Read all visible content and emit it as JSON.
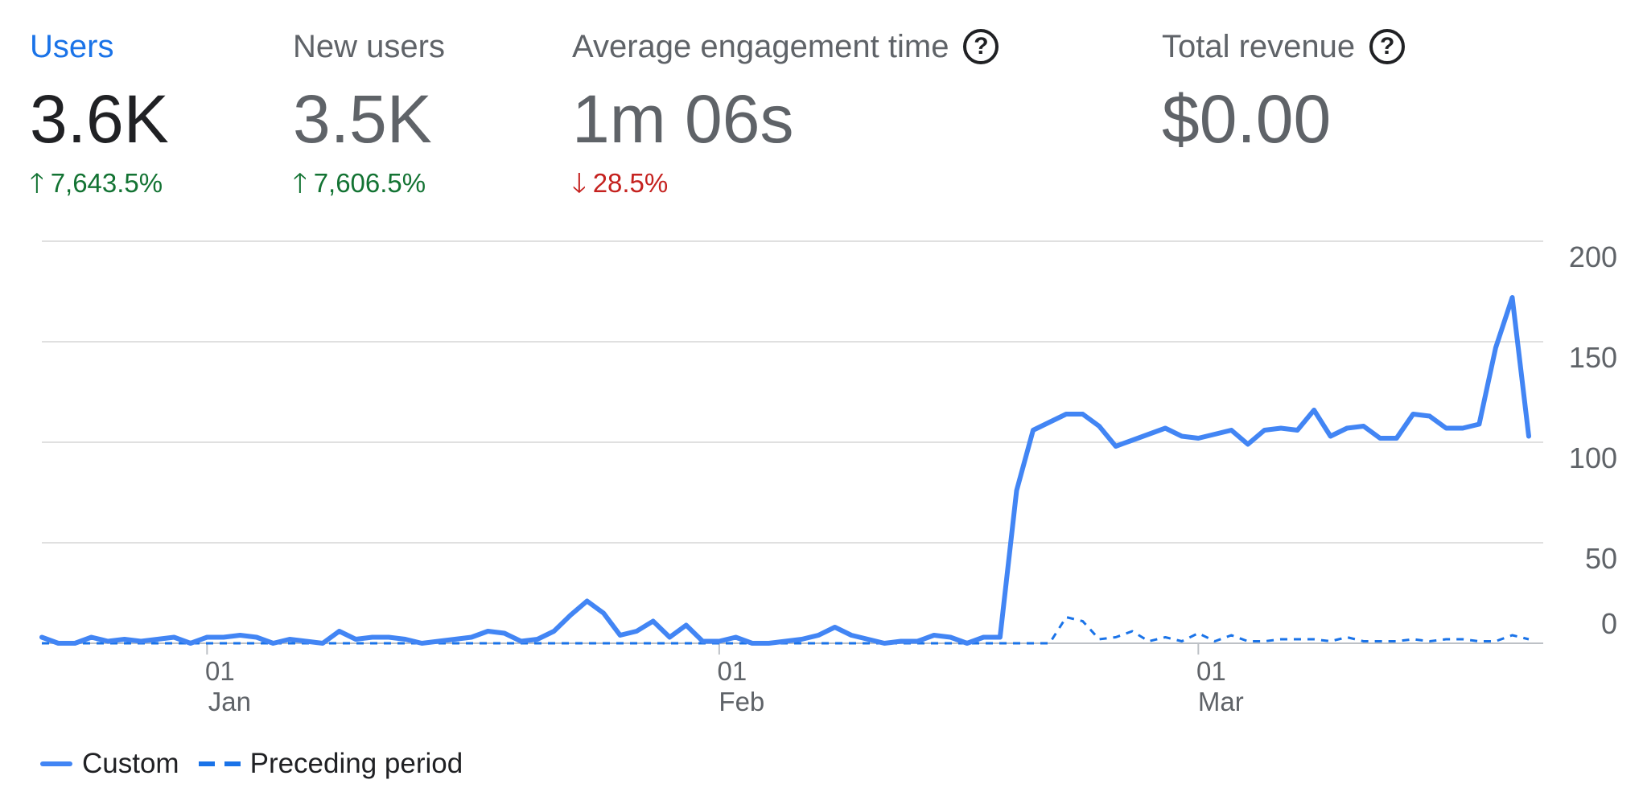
{
  "metrics": [
    {
      "label": "Users",
      "value": "3.6K",
      "delta": "7,643.5%",
      "direction": "up",
      "active": true,
      "help": false
    },
    {
      "label": "New users",
      "value": "3.5K",
      "delta": "7,606.5%",
      "direction": "up",
      "active": false,
      "help": false
    },
    {
      "label": "Average engagement time",
      "value": "1m 06s",
      "delta": "28.5%",
      "direction": "down",
      "active": false,
      "help": true
    },
    {
      "label": "Total revenue",
      "value": "$0.00",
      "delta": "",
      "direction": "",
      "active": false,
      "help": true
    }
  ],
  "icons": {
    "up": "arrow-up-icon",
    "down": "arrow-down-icon",
    "help": "help-circle-icon"
  },
  "colors": {
    "custom": "#4285f4",
    "preceding": "#1a73e8",
    "up": "#137333",
    "down": "#c5221f",
    "accent": "#1a73e8"
  },
  "legend": {
    "custom": "Custom",
    "preceding": "Preceding period"
  },
  "chart_data": {
    "type": "line",
    "xlabel": "",
    "ylabel": "",
    "ylim": [
      0,
      200
    ],
    "yticks": [
      0,
      50,
      100,
      150,
      200
    ],
    "xticks": [
      {
        "day": "01",
        "month": "Jan"
      },
      {
        "day": "01",
        "month": "Feb"
      },
      {
        "day": "01",
        "month": "Mar"
      }
    ],
    "x_start": "2023-12-22",
    "grid": true,
    "legend_position": "bottom-left",
    "series": [
      {
        "name": "Custom",
        "style": "solid",
        "values": [
          3,
          0,
          0,
          3,
          1,
          2,
          1,
          2,
          3,
          0,
          3,
          3,
          4,
          3,
          0,
          2,
          1,
          0,
          6,
          2,
          3,
          3,
          2,
          0,
          1,
          2,
          3,
          6,
          5,
          1,
          2,
          6,
          14,
          21,
          15,
          4,
          6,
          11,
          3,
          9,
          1,
          1,
          3,
          0,
          0,
          1,
          2,
          4,
          8,
          4,
          2,
          0,
          1,
          1,
          4,
          3,
          0,
          3,
          3,
          76,
          106,
          110,
          114,
          114,
          108,
          98,
          101,
          104,
          107,
          103,
          102,
          104,
          106,
          99,
          106,
          107,
          106,
          116,
          103,
          107,
          108,
          102,
          102,
          114,
          113,
          107,
          107,
          109,
          147,
          172,
          103
        ]
      },
      {
        "name": "Preceding period",
        "style": "dashed",
        "values": [
          0,
          0,
          0,
          0,
          0,
          0,
          0,
          0,
          0,
          0,
          0,
          0,
          0,
          0,
          0,
          0,
          0,
          0,
          0,
          0,
          0,
          0,
          0,
          0,
          0,
          0,
          0,
          0,
          0,
          0,
          0,
          0,
          0,
          0,
          0,
          0,
          0,
          0,
          0,
          0,
          0,
          0,
          0,
          0,
          0,
          0,
          0,
          0,
          0,
          0,
          0,
          0,
          0,
          0,
          0,
          0,
          0,
          0,
          0,
          0,
          0,
          0,
          13,
          11,
          2,
          3,
          6,
          1,
          3,
          1,
          5,
          1,
          4,
          1,
          1,
          2,
          2,
          2,
          1,
          3,
          1,
          1,
          1,
          2,
          1,
          2,
          2,
          1,
          1,
          4,
          2
        ]
      }
    ]
  }
}
